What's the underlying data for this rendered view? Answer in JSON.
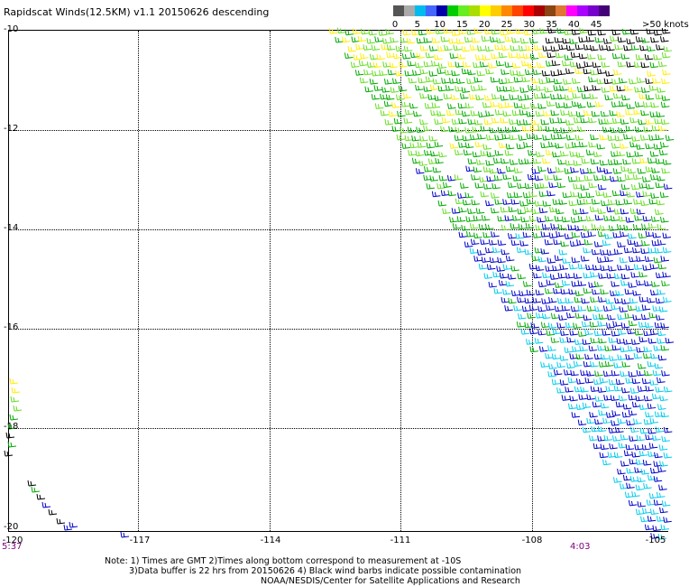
{
  "title": "Rapidscat Winds(12.5KM) v1.1 20150626 descending",
  "colorbar": {
    "colors": [
      "#555555",
      "#aaaaaa",
      "#00bbee",
      "#4466ff",
      "#0000aa",
      "#00cc00",
      "#66ee22",
      "#aadd00",
      "#ffff00",
      "#ffcc00",
      "#ff8800",
      "#ff4400",
      "#ff0000",
      "#aa0000",
      "#8b4513",
      "#dd7733",
      "#ff00ff",
      "#aa00ff",
      "#7700cc",
      "#440077"
    ],
    "labels": [
      "0",
      "5",
      "10",
      "15",
      "20",
      "25",
      "30",
      "35",
      "40",
      "45"
    ],
    "unit_label": ">50 knots"
  },
  "lat_labels": [
    "-10",
    "-12",
    "-14",
    "-16",
    "-18",
    "-20"
  ],
  "lon_labels": [
    "-120",
    "-117",
    "-114",
    "-111",
    "-108",
    "-105"
  ],
  "time_left": "5:37",
  "time_right": "4:03",
  "notes": {
    "line1": "Note: 1) Times are GMT 2)Times along bottom correspond to measurement at -10S",
    "line2": "3)Data buffer is 22 hrs from 20150626 4) Black wind barbs indicate possible contamination",
    "line3": "NOAA/NESDIS/Center for Satellite Applications and Research"
  },
  "barb_colors": {
    "yellow": "#ffee00",
    "light_green": "#66dd22",
    "green": "#00aa00",
    "blue": "#0000cc",
    "cyan": "#00ccee",
    "contaminated": "#000000"
  }
}
